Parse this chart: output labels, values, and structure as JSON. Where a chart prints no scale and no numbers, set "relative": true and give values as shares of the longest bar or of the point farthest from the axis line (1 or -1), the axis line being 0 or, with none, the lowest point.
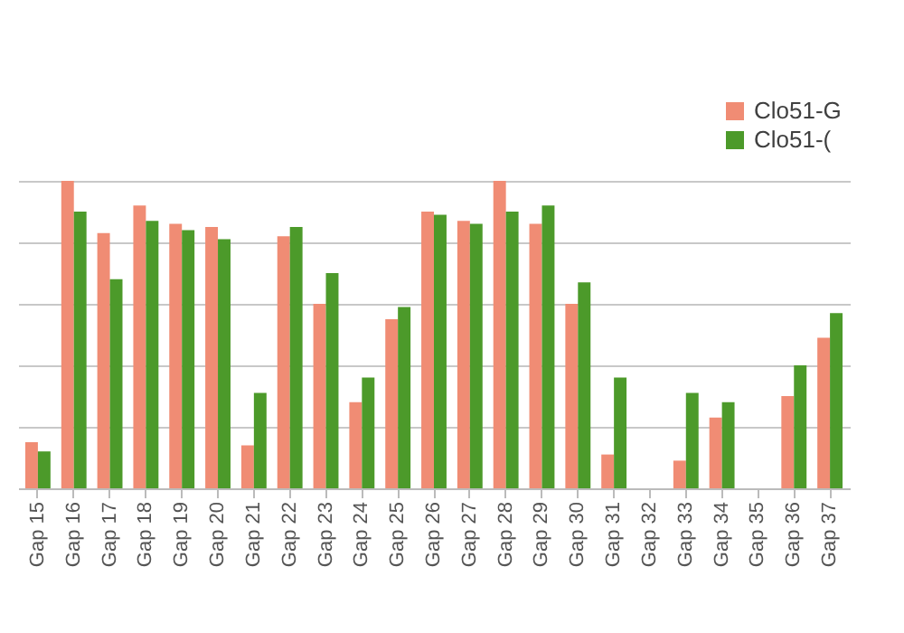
{
  "chart_data": {
    "type": "bar",
    "relative": true,
    "categories": [
      "Gap 15",
      "Gap 16",
      "Gap 17",
      "Gap 18",
      "Gap 19",
      "Gap 20",
      "Gap 21",
      "Gap 22",
      "Gap 23",
      "Gap 24",
      "Gap 25",
      "Gap 26",
      "Gap 27",
      "Gap 28",
      "Gap 29",
      "Gap 30",
      "Gap 31",
      "Gap 32",
      "Gap 33",
      "Gap 34",
      "Gap 35",
      "Gap 36",
      "Gap 37"
    ],
    "series": [
      {
        "name": "Clo51-G",
        "color": "#f08c74",
        "values": [
          0.15,
          1,
          0.83,
          0.92,
          0.86,
          0.85,
          0.14,
          0.82,
          0.6,
          0.28,
          0.55,
          0.9,
          0.87,
          1,
          0.86,
          0.6,
          0.11,
          null,
          0.09,
          0.23,
          null,
          0.3,
          0.49
        ]
      },
      {
        "name": "Clo51-(",
        "color": "#4c9a2a",
        "values": [
          0.12,
          0.9,
          0.68,
          0.87,
          0.84,
          0.81,
          0.31,
          0.85,
          0.7,
          0.36,
          0.59,
          0.89,
          0.86,
          0.9,
          0.92,
          0.67,
          0.36,
          null,
          0.31,
          0.28,
          null,
          0.4,
          0.57
        ]
      }
    ],
    "grid": "y",
    "legend": "top right"
  }
}
